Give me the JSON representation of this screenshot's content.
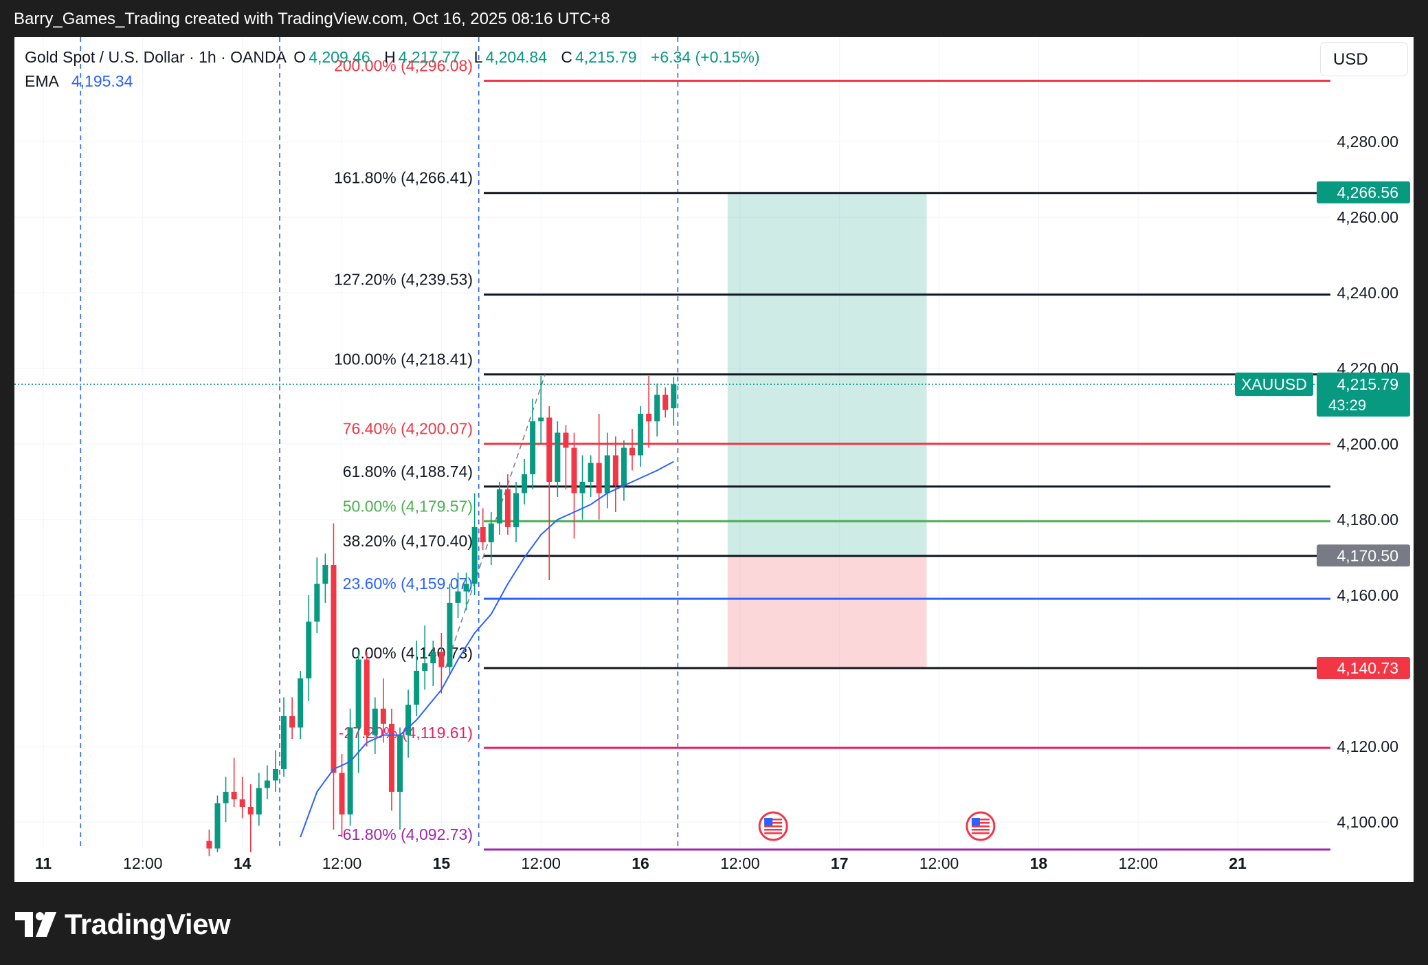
{
  "caption": "Barry_Games_Trading created with TradingView.com, Oct 16, 2025 08:16 UTC+8",
  "brand": "TradingView",
  "currency": "USD",
  "legend": {
    "title": "Gold Spot / U.S. Dollar · 1h · OANDA",
    "open_label": "O",
    "open": "4,209.46",
    "high_label": "H",
    "high": "4,217.77",
    "low_label": "L",
    "low": "4,204.84",
    "close_label": "C",
    "close": "4,215.79",
    "change": "+6.34 (+0.15%)",
    "ema_label": "EMA",
    "ema_value": "4,195.34"
  },
  "colors": {
    "up": "#089981",
    "down": "#f23645",
    "ema": "#2962ff"
  },
  "chart_data": {
    "type": "candlestick",
    "symbol": "XAUUSD",
    "ylim": [
      4090,
      4305
    ],
    "x_ticks": [
      {
        "label": "11",
        "bold": true,
        "t": 0
      },
      {
        "label": "12:00",
        "bold": false,
        "t": 12
      },
      {
        "label": "14",
        "bold": true,
        "t": 24
      },
      {
        "label": "12:00",
        "bold": false,
        "t": 36
      },
      {
        "label": "15",
        "bold": true,
        "t": 48
      },
      {
        "label": "12:00",
        "bold": false,
        "t": 60
      },
      {
        "label": "16",
        "bold": true,
        "t": 72
      },
      {
        "label": "12:00",
        "bold": false,
        "t": 84
      },
      {
        "label": "17",
        "bold": true,
        "t": 96
      },
      {
        "label": "12:00",
        "bold": false,
        "t": 108
      },
      {
        "label": "18",
        "bold": true,
        "t": 120
      },
      {
        "label": "12:00",
        "bold": false,
        "t": 132
      },
      {
        "label": "21",
        "bold": true,
        "t": 144
      }
    ],
    "y_ticks": [
      "4,100.00",
      "4,120.00",
      "4,160.00",
      "4,180.00",
      "4,200.00",
      "4,220.00",
      "4,240.00",
      "4,260.00",
      "4,280.00"
    ],
    "session_lines": [
      4.5,
      28.5,
      52.5,
      76.5
    ],
    "fib_levels": [
      {
        "label": "200.00% (4,296.08)",
        "price": 4296.08,
        "color": "#f23645"
      },
      {
        "label": "161.80% (4,266.41)",
        "price": 4266.41,
        "color": "#131722"
      },
      {
        "label": "127.20% (4,239.53)",
        "price": 4239.53,
        "color": "#131722"
      },
      {
        "label": "100.00% (4,218.41)",
        "price": 4218.41,
        "color": "#131722"
      },
      {
        "label": "76.40% (4,200.07)",
        "price": 4200.07,
        "color": "#f23645"
      },
      {
        "label": "61.80% (4,188.74)",
        "price": 4188.74,
        "color": "#131722"
      },
      {
        "label": "50.00% (4,179.57)",
        "price": 4179.57,
        "color": "#4caf50"
      },
      {
        "label": "38.20% (4,170.40)",
        "price": 4170.4,
        "color": "#131722"
      },
      {
        "label": "23.60% (4,159.07)",
        "price": 4159.07,
        "color": "#2962ff"
      },
      {
        "label": "0.00% (4,140.73)",
        "price": 4140.73,
        "color": "#131722"
      },
      {
        "label": "-27.20% (4,119.61)",
        "price": 4119.61,
        "color": "#e91e63"
      },
      {
        "label": "-61.80% (4,092.73)",
        "price": 4092.73,
        "color": "#9c27b0"
      }
    ],
    "position": {
      "entry": 4170.5,
      "target": 4266.56,
      "stop": 4140.73,
      "t_start": 82.5,
      "t_end": 106.5
    },
    "price_labels": [
      {
        "text": "4,266.56",
        "price": 4266.56,
        "color": "#089981"
      },
      {
        "text": "4,170.50",
        "price": 4170.5,
        "color": "#787b86"
      },
      {
        "text": "4,140.73",
        "price": 4140.73,
        "color": "#f23645"
      }
    ],
    "last_price": {
      "symbol": "XAUUSD",
      "price": 4215.79,
      "text": "4,215.79",
      "countdown": "43:29"
    },
    "events": [
      {
        "t": 88
      },
      {
        "t": 113
      }
    ],
    "candles": [
      {
        "t": 20,
        "o": 4095,
        "h": 4098,
        "l": 4091,
        "c": 4093
      },
      {
        "t": 21,
        "o": 4093,
        "h": 4107,
        "l": 4092,
        "c": 4105
      },
      {
        "t": 22,
        "o": 4105,
        "h": 4112,
        "l": 4100,
        "c": 4108
      },
      {
        "t": 23,
        "o": 4108,
        "h": 4117,
        "l": 4104,
        "c": 4106
      },
      {
        "t": 24,
        "o": 4106,
        "h": 4112,
        "l": 4101,
        "c": 4104
      },
      {
        "t": 25,
        "o": 4104,
        "h": 4110,
        "l": 4092,
        "c": 4102
      },
      {
        "t": 26,
        "o": 4102,
        "h": 4113,
        "l": 4099,
        "c": 4109
      },
      {
        "t": 27,
        "o": 4109,
        "h": 4115,
        "l": 4106,
        "c": 4111
      },
      {
        "t": 28,
        "o": 4111,
        "h": 4119,
        "l": 4108,
        "c": 4114
      },
      {
        "t": 29,
        "o": 4114,
        "h": 4133,
        "l": 4112,
        "c": 4128
      },
      {
        "t": 30,
        "o": 4128,
        "h": 4133,
        "l": 4122,
        "c": 4125
      },
      {
        "t": 31,
        "o": 4125,
        "h": 4140,
        "l": 4122,
        "c": 4138
      },
      {
        "t": 32,
        "o": 4138,
        "h": 4160,
        "l": 4132,
        "c": 4153
      },
      {
        "t": 33,
        "o": 4153,
        "h": 4170,
        "l": 4150,
        "c": 4163
      },
      {
        "t": 34,
        "o": 4163,
        "h": 4171,
        "l": 4158,
        "c": 4168
      },
      {
        "t": 35,
        "o": 4168,
        "h": 4179,
        "l": 4098,
        "c": 4113
      },
      {
        "t": 36,
        "o": 4113,
        "h": 4118,
        "l": 4096,
        "c": 4102
      },
      {
        "t": 37,
        "o": 4102,
        "h": 4130,
        "l": 4099,
        "c": 4125
      },
      {
        "t": 38,
        "o": 4125,
        "h": 4145,
        "l": 4113,
        "c": 4143
      },
      {
        "t": 39,
        "o": 4143,
        "h": 4145,
        "l": 4120,
        "c": 4123
      },
      {
        "t": 40,
        "o": 4123,
        "h": 4133,
        "l": 4118,
        "c": 4130
      },
      {
        "t": 41,
        "o": 4130,
        "h": 4138,
        "l": 4121,
        "c": 4126
      },
      {
        "t": 42,
        "o": 4126,
        "h": 4130,
        "l": 4103,
        "c": 4108
      },
      {
        "t": 43,
        "o": 4108,
        "h": 4125,
        "l": 4098,
        "c": 4123
      },
      {
        "t": 44,
        "o": 4123,
        "h": 4135,
        "l": 4117,
        "c": 4131
      },
      {
        "t": 45,
        "o": 4131,
        "h": 4148,
        "l": 4128,
        "c": 4140
      },
      {
        "t": 46,
        "o": 4140,
        "h": 4152,
        "l": 4135,
        "c": 4142
      },
      {
        "t": 47,
        "o": 4142,
        "h": 4148,
        "l": 4136,
        "c": 4145
      },
      {
        "t": 48,
        "o": 4145,
        "h": 4150,
        "l": 4134,
        "c": 4141
      },
      {
        "t": 49,
        "o": 4141,
        "h": 4163,
        "l": 4139,
        "c": 4158
      },
      {
        "t": 50,
        "o": 4158,
        "h": 4166,
        "l": 4154,
        "c": 4161
      },
      {
        "t": 51,
        "o": 4161,
        "h": 4166,
        "l": 4156,
        "c": 4163
      },
      {
        "t": 52,
        "o": 4163,
        "h": 4187,
        "l": 4160,
        "c": 4178
      },
      {
        "t": 53,
        "o": 4178,
        "h": 4183,
        "l": 4172,
        "c": 4174
      },
      {
        "t": 54,
        "o": 4174,
        "h": 4182,
        "l": 4168,
        "c": 4179
      },
      {
        "t": 55,
        "o": 4179,
        "h": 4190,
        "l": 4176,
        "c": 4188
      },
      {
        "t": 56,
        "o": 4188,
        "h": 4192,
        "l": 4176,
        "c": 4178
      },
      {
        "t": 57,
        "o": 4178,
        "h": 4190,
        "l": 4174,
        "c": 4187
      },
      {
        "t": 58,
        "o": 4187,
        "h": 4196,
        "l": 4184,
        "c": 4192
      },
      {
        "t": 59,
        "o": 4192,
        "h": 4212,
        "l": 4188,
        "c": 4206
      },
      {
        "t": 60,
        "o": 4206,
        "h": 4218,
        "l": 4200,
        "c": 4207
      },
      {
        "t": 61,
        "o": 4207,
        "h": 4210,
        "l": 4164,
        "c": 4190
      },
      {
        "t": 62,
        "o": 4190,
        "h": 4206,
        "l": 4186,
        "c": 4203
      },
      {
        "t": 63,
        "o": 4203,
        "h": 4205,
        "l": 4188,
        "c": 4199
      },
      {
        "t": 64,
        "o": 4199,
        "h": 4203,
        "l": 4175,
        "c": 4187
      },
      {
        "t": 65,
        "o": 4187,
        "h": 4197,
        "l": 4180,
        "c": 4190
      },
      {
        "t": 66,
        "o": 4190,
        "h": 4197,
        "l": 4186,
        "c": 4195
      },
      {
        "t": 67,
        "o": 4195,
        "h": 4208,
        "l": 4180,
        "c": 4187
      },
      {
        "t": 68,
        "o": 4187,
        "h": 4203,
        "l": 4183,
        "c": 4197
      },
      {
        "t": 69,
        "o": 4197,
        "h": 4202,
        "l": 4182,
        "c": 4189
      },
      {
        "t": 70,
        "o": 4189,
        "h": 4201,
        "l": 4185,
        "c": 4199
      },
      {
        "t": 71,
        "o": 4199,
        "h": 4204,
        "l": 4193,
        "c": 4197
      },
      {
        "t": 72,
        "o": 4197,
        "h": 4210,
        "l": 4194,
        "c": 4208
      },
      {
        "t": 73,
        "o": 4208,
        "h": 4218,
        "l": 4199,
        "c": 4206
      },
      {
        "t": 74,
        "o": 4206,
        "h": 4216,
        "l": 4202,
        "c": 4213
      },
      {
        "t": 75,
        "o": 4213,
        "h": 4215,
        "l": 4207,
        "c": 4209
      },
      {
        "t": 76,
        "o": 4209.46,
        "h": 4217.77,
        "l": 4204.84,
        "c": 4215.79
      }
    ],
    "ema": [
      {
        "t": 31,
        "v": 4096
      },
      {
        "t": 33,
        "v": 4108
      },
      {
        "t": 35,
        "v": 4114
      },
      {
        "t": 37,
        "v": 4116
      },
      {
        "t": 39,
        "v": 4121
      },
      {
        "t": 41,
        "v": 4123
      },
      {
        "t": 43,
        "v": 4123
      },
      {
        "t": 45,
        "v": 4127
      },
      {
        "t": 48,
        "v": 4135
      },
      {
        "t": 50,
        "v": 4143
      },
      {
        "t": 52,
        "v": 4150
      },
      {
        "t": 54,
        "v": 4155
      },
      {
        "t": 56,
        "v": 4163
      },
      {
        "t": 58,
        "v": 4170
      },
      {
        "t": 60,
        "v": 4176
      },
      {
        "t": 62,
        "v": 4180
      },
      {
        "t": 64,
        "v": 4182
      },
      {
        "t": 66,
        "v": 4184
      },
      {
        "t": 68,
        "v": 4187
      },
      {
        "t": 70,
        "v": 4189
      },
      {
        "t": 72,
        "v": 4191
      },
      {
        "t": 74,
        "v": 4193
      },
      {
        "t": 76,
        "v": 4195.34
      }
    ],
    "fib_trend": [
      {
        "t": 48.5,
        "v": 4140.73
      },
      {
        "t": 60.5,
        "v": 4218.41
      }
    ]
  }
}
